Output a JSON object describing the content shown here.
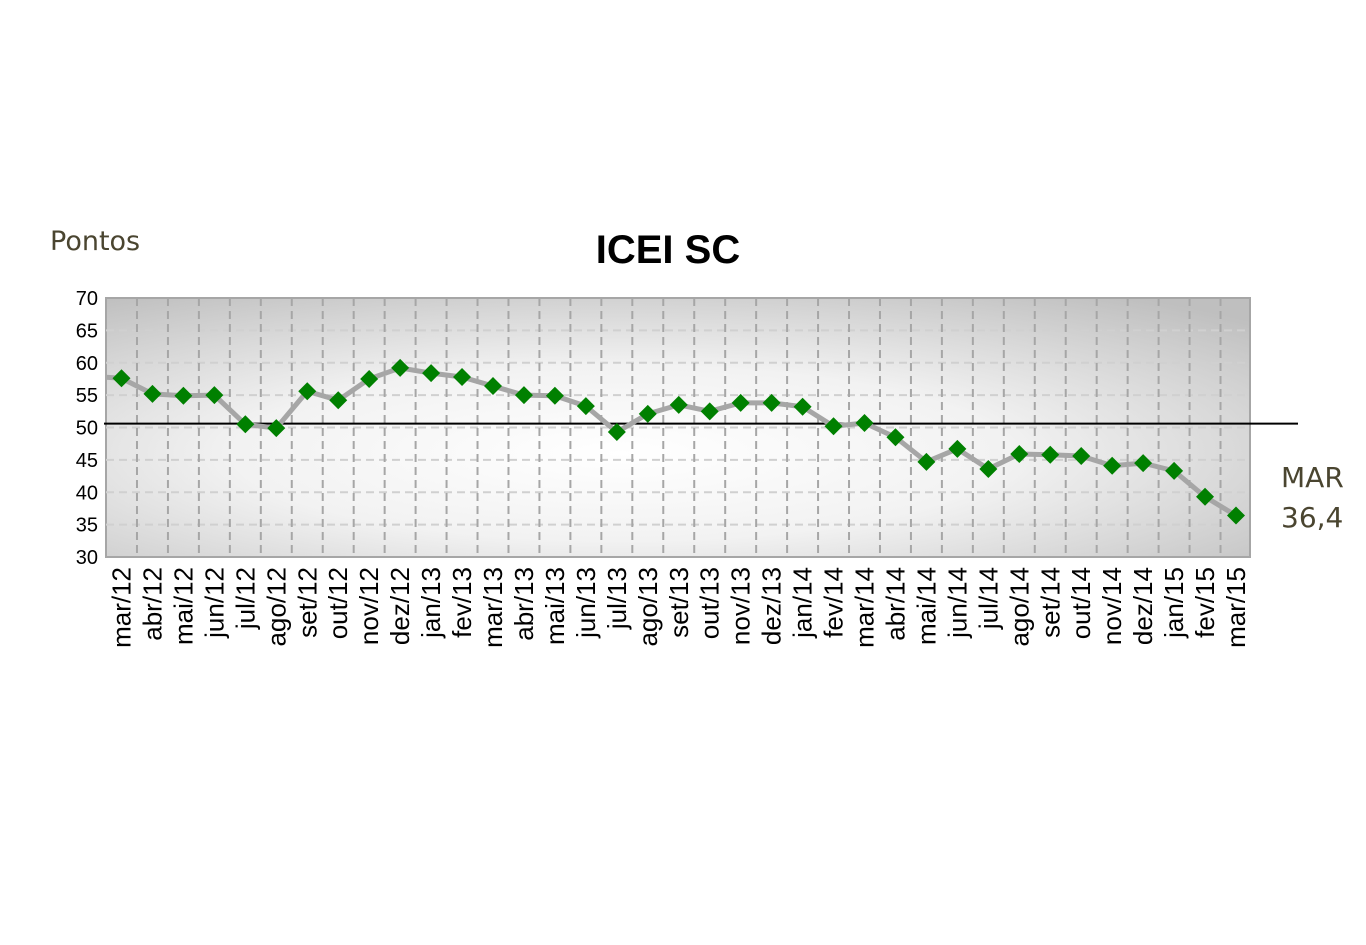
{
  "chart_data": {
    "type": "line",
    "title": "ICEI SC",
    "ylabel": "Pontos",
    "xlabel": "",
    "ylim": [
      30,
      70
    ],
    "yticks": [
      30,
      35,
      40,
      45,
      50,
      55,
      60,
      65,
      70
    ],
    "grid": true,
    "legend": "none",
    "reference_line": 50.6,
    "categories": [
      "mar/12",
      "abr/12",
      "mai/12",
      "jun/12",
      "jul/12",
      "ago/12",
      "set/12",
      "out/12",
      "nov/12",
      "dez/12",
      "jan/13",
      "fev/13",
      "mar/13",
      "abr/13",
      "mai/13",
      "jun/13",
      "jul/13",
      "ago/13",
      "set/13",
      "out/13",
      "nov/13",
      "dez/13",
      "jan/14",
      "fev/14",
      "mar/14",
      "abr/14",
      "mai/14",
      "jun/14",
      "jul/14",
      "ago/14",
      "set/14",
      "out/14",
      "nov/14",
      "dez/14",
      "jan/15",
      "fev/15",
      "mar/15"
    ],
    "values": [
      57.6,
      55.2,
      54.9,
      55.0,
      50.5,
      49.9,
      55.6,
      54.2,
      57.5,
      59.2,
      58.4,
      57.8,
      56.4,
      55.0,
      54.9,
      53.3,
      49.3,
      52.1,
      53.5,
      52.5,
      53.8,
      53.8,
      53.2,
      50.2,
      50.7,
      48.5,
      44.7,
      46.7,
      43.6,
      45.9,
      45.8,
      45.6,
      44.1,
      44.5,
      43.3,
      39.3,
      36.4
    ],
    "annotation": {
      "line1": "MAR",
      "line2": "36,4"
    },
    "colors": {
      "marker": "#008000",
      "line": "#a6a6a6",
      "reference": "#000000",
      "grid": "#a6a6a6"
    }
  }
}
